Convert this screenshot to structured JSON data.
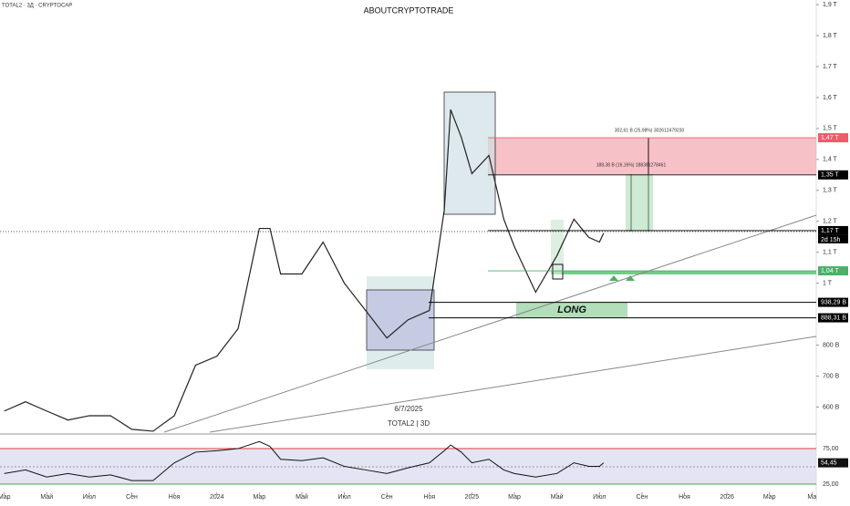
{
  "header": {
    "symbol": "TOTAL2 · 3Д · CRYPTOCAP",
    "author": "ABOUTCRYPTOTRADE"
  },
  "annotations": {
    "date": "6/7/2025",
    "watermark": "TOTAL2 | 3D",
    "long": "LONG",
    "measure_top": "302,61 B (25,98%) 302612479230",
    "measure_bottom": "188,38 B (16,16%) 188381278461",
    "countdown": "2d 15h"
  },
  "chart_data": {
    "type": "line",
    "x": [
      0,
      1,
      2,
      3,
      4,
      5,
      6,
      7,
      8,
      9,
      10,
      11,
      12,
      12.5,
      13,
      14,
      15,
      16,
      17,
      18,
      19,
      20,
      20.7,
      21,
      21.5,
      22,
      22.8,
      23.5,
      24,
      25,
      26,
      26.8,
      27.5,
      28,
      28.2
    ],
    "xlim": [
      -0.2,
      38.2
    ],
    "xticks": [
      {
        "value": 0,
        "label": "Мар"
      },
      {
        "value": 2,
        "label": "Май"
      },
      {
        "value": 4,
        "label": "Июл"
      },
      {
        "value": 6,
        "label": "Сен"
      },
      {
        "value": 8,
        "label": "Ноя"
      },
      {
        "value": 10,
        "label": "2024"
      },
      {
        "value": 12,
        "label": "Мар"
      },
      {
        "value": 14,
        "label": "Май"
      },
      {
        "value": 16,
        "label": "Июл"
      },
      {
        "value": 18,
        "label": "Сен"
      },
      {
        "value": 20,
        "label": "Ноя"
      },
      {
        "value": 22,
        "label": "2025"
      },
      {
        "value": 24,
        "label": "Мар"
      },
      {
        "value": 26,
        "label": "Май"
      },
      {
        "value": 28,
        "label": "Июл"
      },
      {
        "value": 30,
        "label": "Сен"
      },
      {
        "value": 32,
        "label": "Ноя"
      },
      {
        "value": 34,
        "label": "2026"
      },
      {
        "value": 36,
        "label": "Мар"
      },
      {
        "value": 38,
        "label": "Ма"
      }
    ],
    "series": [
      {
        "name": "TOTAL2",
        "color": "#222222",
        "values": [
          587,
          617,
          587,
          558,
          572,
          572,
          528,
          522,
          572,
          735,
          764,
          853,
          1177,
          1177,
          1030,
          1030,
          1133,
          1000,
          912,
          823,
          882,
          912,
          1236,
          1561,
          1472,
          1354,
          1413,
          1207,
          1118,
          971,
          1089,
          1207,
          1148,
          1133,
          1162
        ]
      }
    ],
    "ylim": [
      513,
      1915
    ],
    "yticks": [
      {
        "value": 1900,
        "label": "1,9 T"
      },
      {
        "value": 1800,
        "label": "1,8 T"
      },
      {
        "value": 1700,
        "label": "1,7 T"
      },
      {
        "value": 1600,
        "label": "1,6 T"
      },
      {
        "value": 1500,
        "label": "1,5 T"
      },
      {
        "value": 1400,
        "label": "1,4 T"
      },
      {
        "value": 1300,
        "label": "1,3 T"
      },
      {
        "value": 1200,
        "label": "1,2 T"
      },
      {
        "value": 1100,
        "label": "1,1 T"
      },
      {
        "value": 1000,
        "label": "1 T"
      },
      {
        "value": 800,
        "label": "800 B"
      },
      {
        "value": 700,
        "label": "700 B"
      },
      {
        "value": 600,
        "label": "600 B"
      }
    ],
    "levels": [
      {
        "value": 1470,
        "label": "1,47 T",
        "color": "#f05a6a"
      },
      {
        "value": 1350,
        "label": "1,35 T",
        "color": "#000000"
      },
      {
        "value": 1170,
        "label": "1,17 T",
        "color": "#000000"
      },
      {
        "value": 1040,
        "label": "1,04 T",
        "color": "#4caf6a"
      },
      {
        "value": 938.29,
        "label": "938,29 B",
        "color": "#000000"
      },
      {
        "value": 888.31,
        "label": "888,31 B",
        "color": "#000000"
      }
    ],
    "rsi": {
      "color": "#111111",
      "ylim": [
        13.5,
        93
      ],
      "yticks": [
        {
          "value": 75,
          "label": "75,00"
        },
        {
          "value": 25,
          "label": "25,00"
        }
      ],
      "values": [
        40,
        45,
        35,
        40,
        35,
        38,
        30,
        30,
        55,
        70,
        72,
        75,
        85,
        78,
        60,
        58,
        62,
        50,
        45,
        40,
        48,
        55,
        72,
        80,
        70,
        55,
        60,
        45,
        40,
        35,
        40,
        55,
        50,
        50,
        55
      ],
      "last_label": "54,45"
    }
  }
}
